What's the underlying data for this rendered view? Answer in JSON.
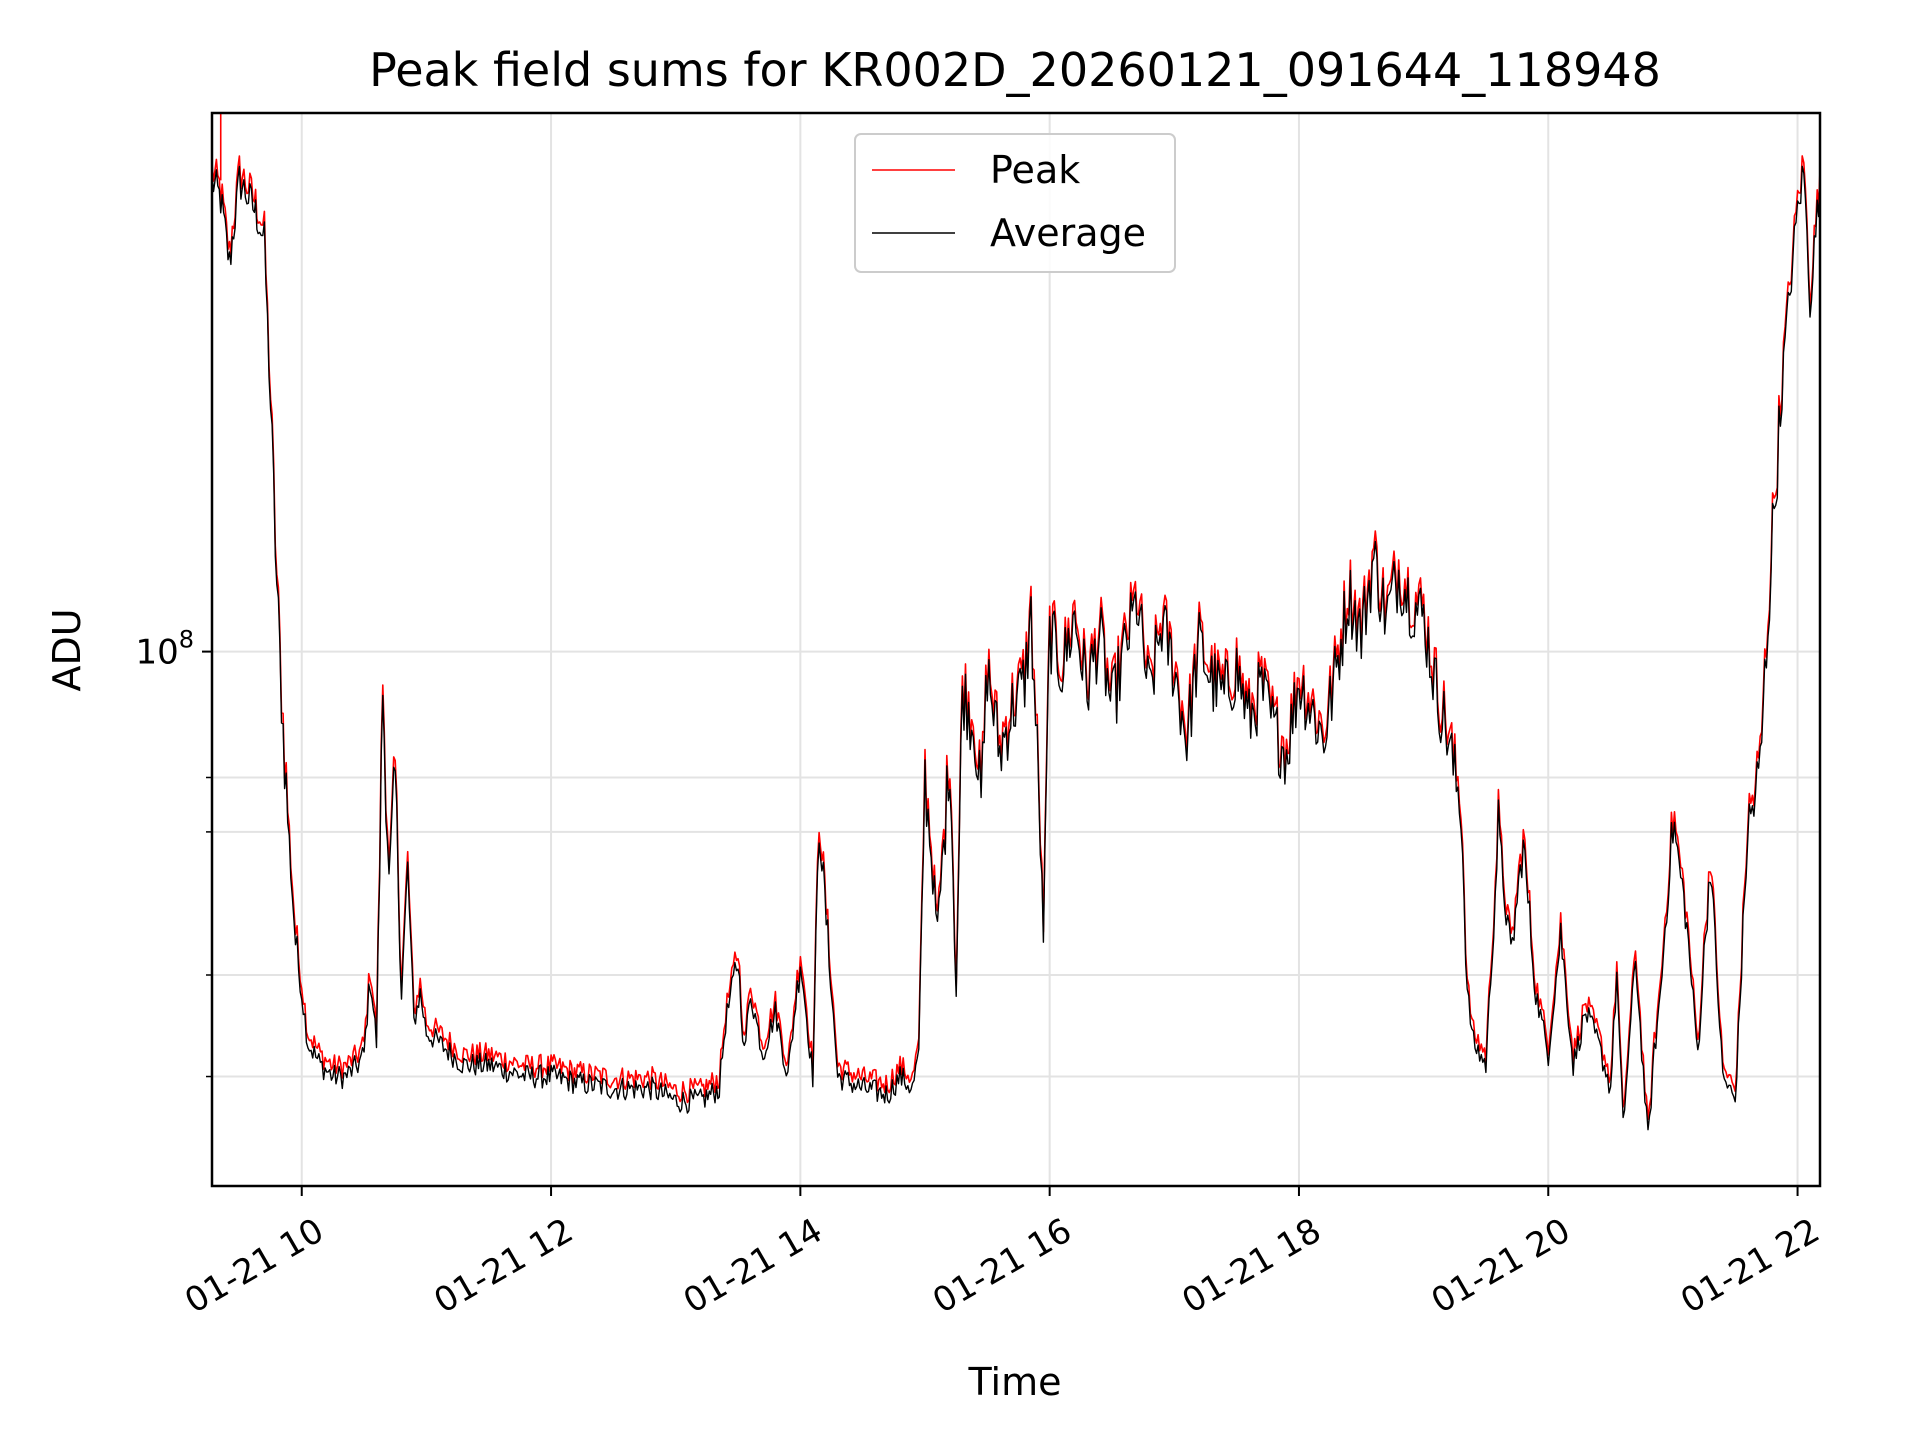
{
  "chart_data": {
    "type": "line",
    "title": "Peak field sums for KR002D_20260121_091644_118948",
    "xlabel": "Time",
    "ylabel": "ADU",
    "y_scale": "log",
    "xlim": [
      9.28,
      22.18
    ],
    "ylim": [
      22000000,
      460000000
    ],
    "x_ticks": [
      {
        "value": 10,
        "label": "01-21 10"
      },
      {
        "value": 12,
        "label": "01-21 12"
      },
      {
        "value": 14,
        "label": "01-21 14"
      },
      {
        "value": 16,
        "label": "01-21 16"
      },
      {
        "value": 18,
        "label": "01-21 18"
      },
      {
        "value": 20,
        "label": "01-21 20"
      },
      {
        "value": 22,
        "label": "01-21 22"
      }
    ],
    "y_major_ticks": [
      {
        "value": 100000000,
        "base": "10",
        "exp": "8"
      }
    ],
    "y_minor_ticks": [
      30000000,
      40000000,
      60000000,
      70000000
    ],
    "grid": true,
    "legend_position": "upper center",
    "series": [
      {
        "name": "Peak",
        "color": "#ff0000",
        "offset_factor": 1.03
      },
      {
        "name": "Average",
        "color": "#000000",
        "offset_factor": 1.0
      }
    ],
    "series_x": [
      9.28,
      9.35,
      9.42,
      9.5,
      9.62,
      9.65,
      9.7,
      9.75,
      9.8,
      9.85,
      9.9,
      9.95,
      10.0,
      10.05,
      10.15,
      10.25,
      10.35,
      10.45,
      10.5,
      10.55,
      10.6,
      10.65,
      10.7,
      10.75,
      10.8,
      10.85,
      10.9,
      10.95,
      11.0,
      11.1,
      11.2,
      11.3,
      11.5,
      11.8,
      12.0,
      12.2,
      12.5,
      12.8,
      13.0,
      13.2,
      13.35,
      13.4,
      13.5,
      13.55,
      13.6,
      13.7,
      13.8,
      13.9,
      14.0,
      14.1,
      14.15,
      14.3,
      14.5,
      14.7,
      14.8,
      14.9,
      14.95,
      15.0,
      15.1,
      15.2,
      15.25,
      15.3,
      15.4,
      15.45,
      15.5,
      15.6,
      15.7,
      15.75,
      15.8,
      15.85,
      15.9,
      15.95,
      16.0,
      16.1,
      16.2,
      16.3,
      16.4,
      16.5,
      16.6,
      16.7,
      16.8,
      16.9,
      17.0,
      17.1,
      17.2,
      17.3,
      17.4,
      17.5,
      17.6,
      17.7,
      17.8,
      17.9,
      18.0,
      18.1,
      18.2,
      18.3,
      18.4,
      18.5,
      18.6,
      18.7,
      18.8,
      18.9,
      19.0,
      19.1,
      19.2,
      19.25,
      19.3,
      19.35,
      19.4,
      19.5,
      19.6,
      19.7,
      19.8,
      19.9,
      20.0,
      20.1,
      20.2,
      20.3,
      20.4,
      20.5,
      20.55,
      20.6,
      20.7,
      20.8,
      20.85,
      20.9,
      21.0,
      21.1,
      21.2,
      21.3,
      21.4,
      21.5,
      21.6,
      21.65,
      21.7,
      21.8,
      21.9,
      21.95,
      22.0,
      22.05,
      22.1,
      22.18
    ],
    "series_y": [
      380000000,
      360000000,
      300000000,
      380000000,
      350000000,
      340000000,
      320000000,
      200000000,
      120000000,
      80000000,
      58000000,
      44000000,
      38000000,
      33000000,
      31000000,
      30000000,
      30000000,
      31000000,
      32000000,
      40000000,
      33000000,
      90000000,
      52000000,
      70000000,
      38000000,
      54000000,
      35000000,
      38000000,
      34000000,
      33000000,
      32000000,
      31000000,
      31000000,
      30000000,
      30000000,
      29500000,
      29000000,
      29000000,
      28000000,
      28000000,
      29000000,
      35000000,
      42000000,
      32000000,
      38000000,
      32000000,
      36000000,
      30000000,
      42000000,
      30000000,
      62000000,
      30000000,
      29000000,
      28500000,
      30000000,
      29000000,
      32000000,
      70000000,
      45000000,
      75000000,
      38000000,
      90000000,
      80000000,
      65000000,
      95000000,
      75000000,
      85000000,
      88000000,
      92000000,
      110000000,
      75000000,
      45000000,
      105000000,
      95000000,
      110000000,
      90000000,
      105000000,
      85000000,
      100000000,
      115000000,
      88000000,
      108000000,
      95000000,
      78000000,
      102000000,
      92000000,
      88000000,
      95000000,
      82000000,
      90000000,
      80000000,
      75000000,
      92000000,
      85000000,
      78000000,
      95000000,
      118000000,
      105000000,
      130000000,
      110000000,
      125000000,
      115000000,
      110000000,
      90000000,
      78000000,
      70000000,
      65000000,
      38000000,
      33000000,
      31000000,
      60000000,
      42000000,
      58000000,
      38000000,
      32000000,
      45000000,
      31000000,
      36000000,
      33000000,
      29000000,
      40000000,
      26000000,
      42000000,
      25000000,
      32000000,
      38000000,
      62000000,
      48000000,
      32000000,
      55000000,
      30000000,
      28000000,
      60000000,
      65000000,
      72000000,
      140000000,
      240000000,
      290000000,
      350000000,
      390000000,
      270000000,
      380000000
    ]
  }
}
